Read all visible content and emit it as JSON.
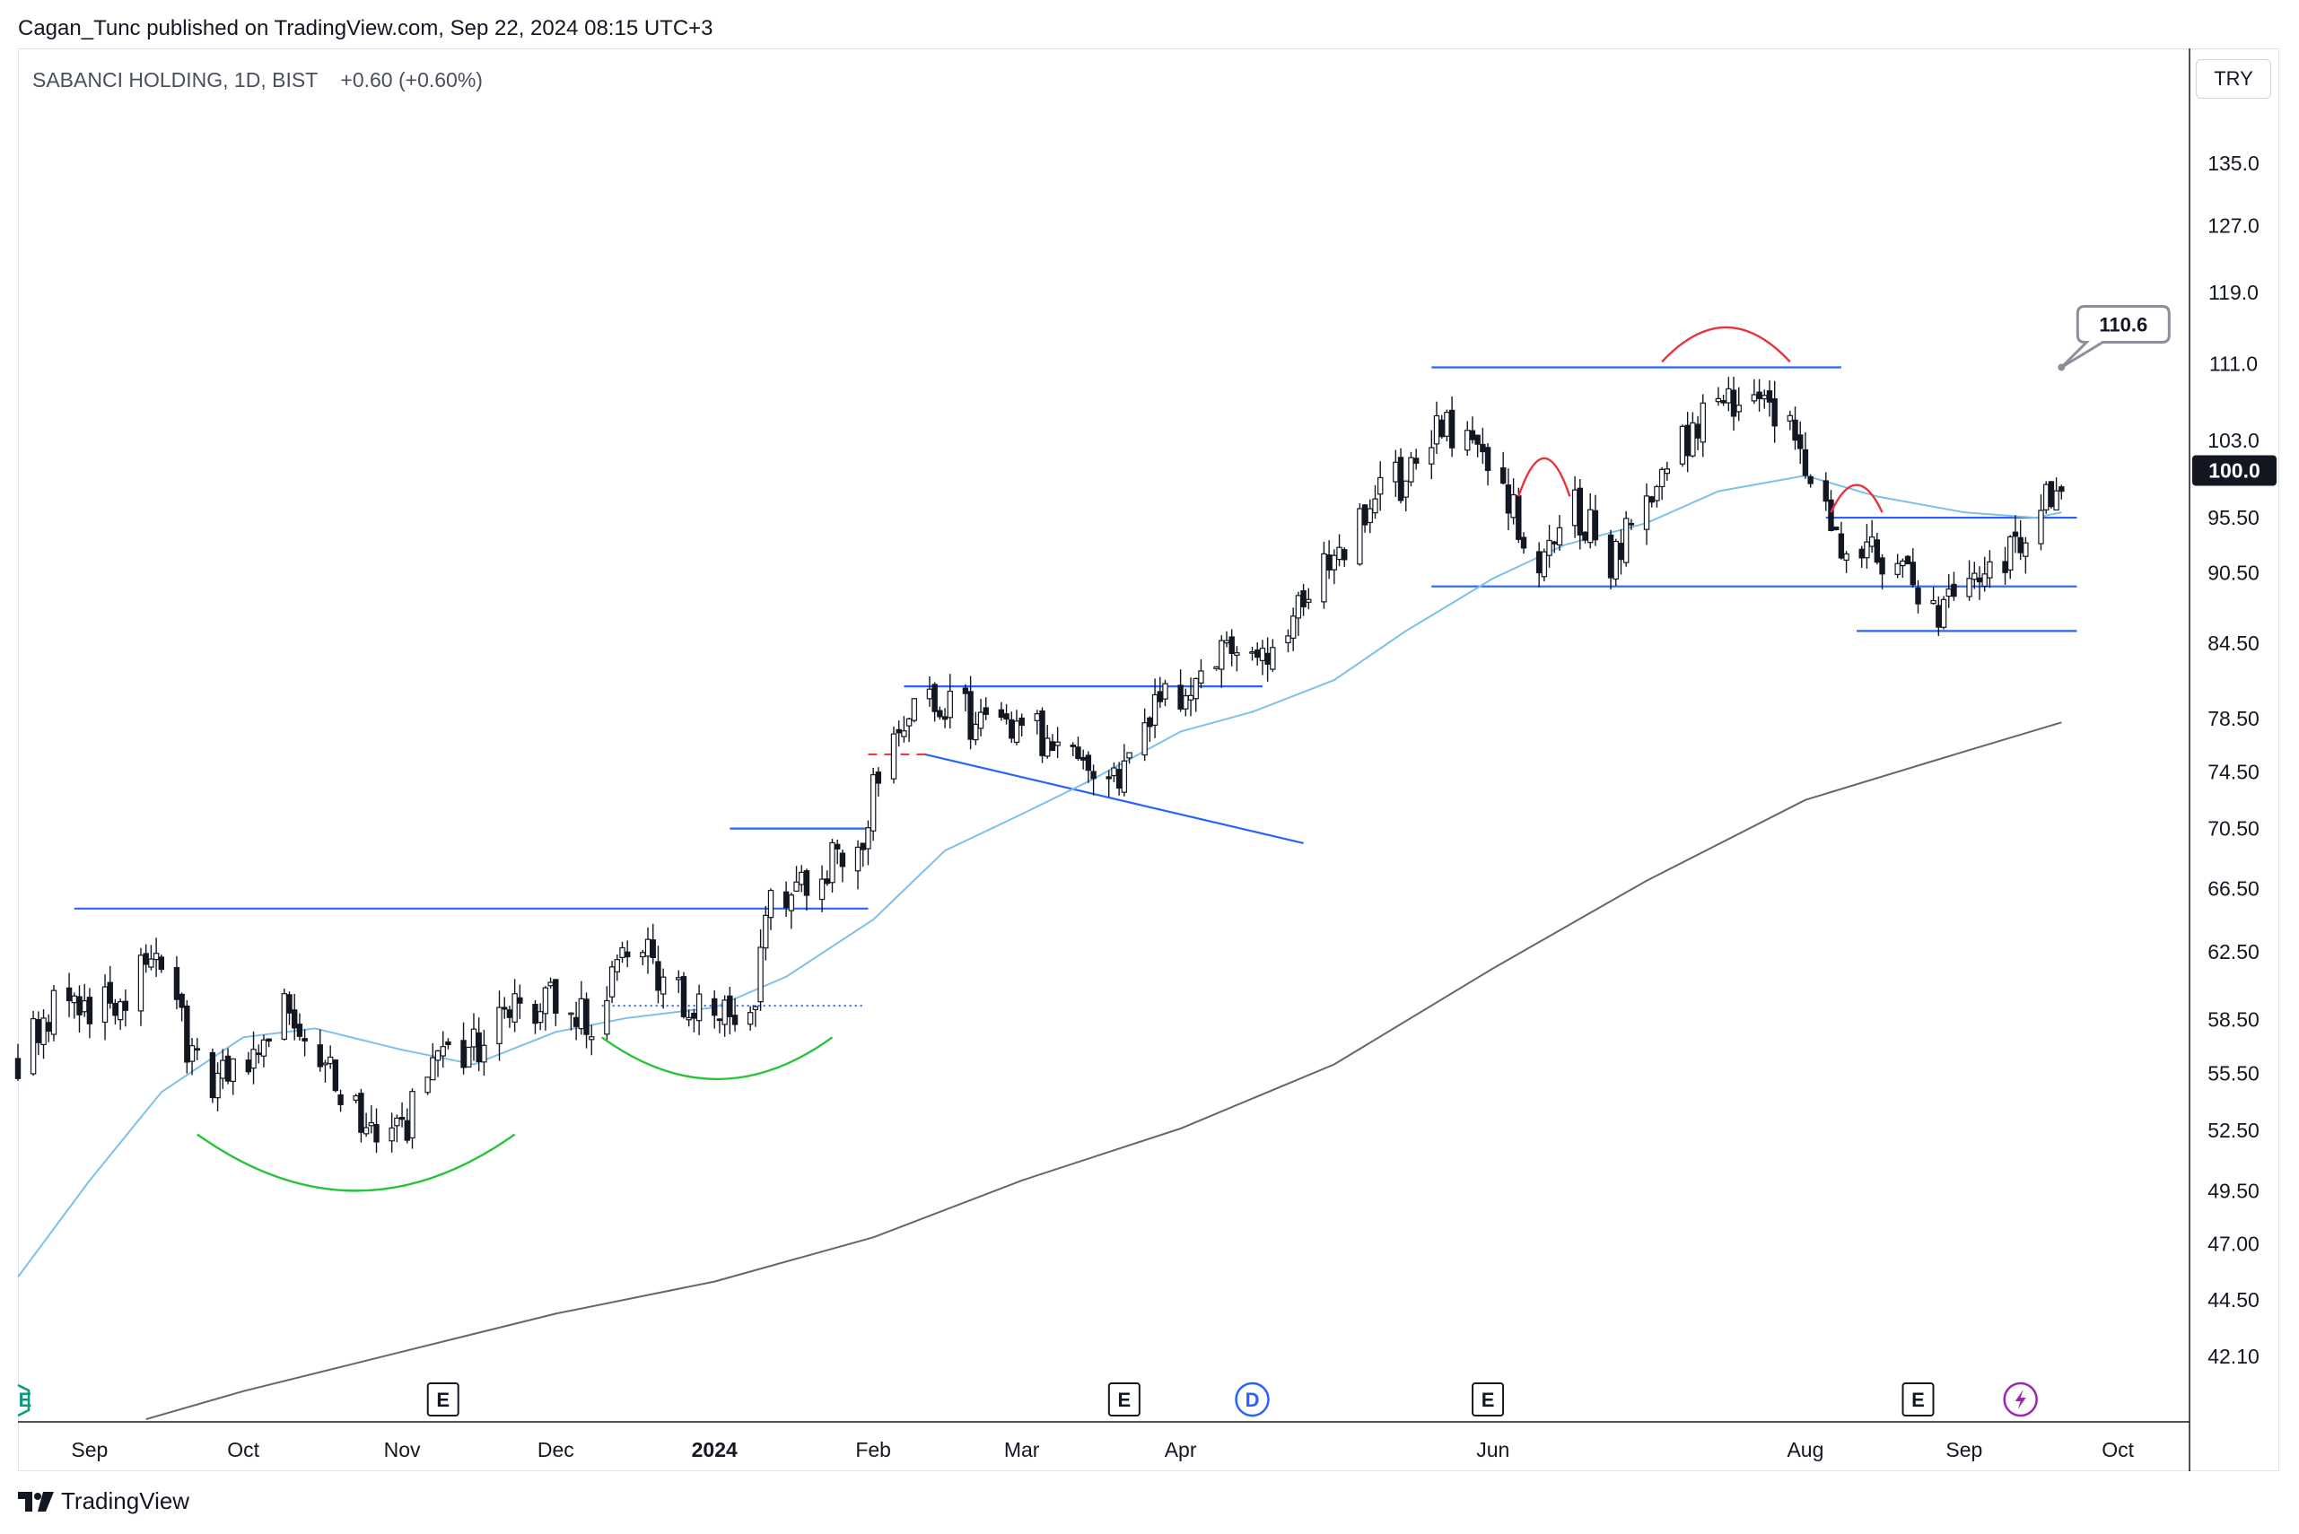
{
  "header": {
    "publish_text": "Cagan_Tunc published on TradingView.com, Sep 22, 2024 08:15 UTC+3"
  },
  "legend": {
    "symbol": "SABANCI HOLDING, 1D, BIST",
    "change": "+0.60 (+0.60%)"
  },
  "price_axis": {
    "currency": "TRY",
    "last_price_label": "100.0",
    "last_price_color": "#131722"
  },
  "footer": {
    "brand": "TradingView"
  },
  "annotations": {
    "callout_value": "110.6"
  },
  "colors": {
    "candle": "#131722",
    "ma_short": "#7cc0ec",
    "ma_long": "#666666",
    "trendline": "#2962ff",
    "arc_red": "#e8333c",
    "arc_green": "#27c43a",
    "earnings_text": "#131722",
    "dividend": "#2962ff",
    "split": "#9c27b0",
    "shoulder_marker": "#e8333c"
  },
  "chart_data": {
    "type": "candlestick",
    "title": "",
    "xlabel": "",
    "ylabel": "",
    "scale": "log",
    "x_range": [
      "2023-08-18",
      "2024-10-15"
    ],
    "ylim": [
      39.5,
      151.0
    ],
    "y_ticks": [
      42.1,
      44.5,
      47.0,
      49.5,
      52.5,
      55.5,
      58.5,
      62.5,
      66.5,
      70.5,
      74.5,
      78.5,
      84.5,
      90.5,
      95.5,
      103.0,
      111.0,
      119.0,
      127.0,
      135.0
    ],
    "y_tick_labels": [
      "42.10",
      "44.50",
      "47.00",
      "49.50",
      "52.50",
      "55.50",
      "58.50",
      "62.50",
      "66.50",
      "70.50",
      "74.50",
      "78.50",
      "84.50",
      "90.50",
      "95.50",
      "103.0",
      "111.0",
      "119.0",
      "127.0",
      "135.0"
    ],
    "x_ticks": [
      {
        "date": "2023-09-01",
        "label": "Sep",
        "bold": false
      },
      {
        "date": "2023-10-01",
        "label": "Oct",
        "bold": false
      },
      {
        "date": "2023-11-01",
        "label": "Nov",
        "bold": false
      },
      {
        "date": "2023-12-01",
        "label": "Dec",
        "bold": false
      },
      {
        "date": "2024-01-01",
        "label": "2024",
        "bold": true
      },
      {
        "date": "2024-02-01",
        "label": "Feb",
        "bold": false
      },
      {
        "date": "2024-03-01",
        "label": "Mar",
        "bold": false
      },
      {
        "date": "2024-04-01",
        "label": "Apr",
        "bold": false
      },
      {
        "date": "2024-06-01",
        "label": "Jun",
        "bold": false
      },
      {
        "date": "2024-08-01",
        "label": "Aug",
        "bold": false
      },
      {
        "date": "2024-09-01",
        "label": "Sep",
        "bold": false
      },
      {
        "date": "2024-10-01",
        "label": "Oct",
        "bold": false
      }
    ],
    "close_path": [
      [
        "2023-08-18",
        56.5
      ],
      [
        "2023-08-25",
        59.5
      ],
      [
        "2023-09-01",
        59.0
      ],
      [
        "2023-09-08",
        60.0
      ],
      [
        "2023-09-14",
        62.5
      ],
      [
        "2023-09-20",
        57.0
      ],
      [
        "2023-09-25",
        54.5
      ],
      [
        "2023-10-03",
        56.5
      ],
      [
        "2023-10-10",
        59.5
      ],
      [
        "2023-10-17",
        56.0
      ],
      [
        "2023-10-24",
        53.0
      ],
      [
        "2023-11-01",
        52.0
      ],
      [
        "2023-11-06",
        55.5
      ],
      [
        "2023-11-14",
        56.5
      ],
      [
        "2023-11-21",
        58.5
      ],
      [
        "2023-12-01",
        59.5
      ],
      [
        "2023-12-08",
        58.0
      ],
      [
        "2023-12-15",
        63.5
      ],
      [
        "2023-12-21",
        61.5
      ],
      [
        "2023-12-27",
        59.0
      ],
      [
        "2024-01-03",
        58.5
      ],
      [
        "2024-01-08",
        58.0
      ],
      [
        "2024-01-12",
        66.5
      ],
      [
        "2024-01-19",
        67.0
      ],
      [
        "2024-01-26",
        68.5
      ],
      [
        "2024-01-30",
        70.5
      ],
      [
        "2024-02-02",
        75.0
      ],
      [
        "2024-02-08",
        80.0
      ],
      [
        "2024-02-15",
        79.0
      ],
      [
        "2024-02-22",
        78.5
      ],
      [
        "2024-02-28",
        77.0
      ],
      [
        "2024-03-07",
        77.5
      ],
      [
        "2024-03-14",
        74.5
      ],
      [
        "2024-03-20",
        73.5
      ],
      [
        "2024-03-27",
        79.0
      ],
      [
        "2024-04-04",
        81.0
      ],
      [
        "2024-04-10",
        85.0
      ],
      [
        "2024-04-17",
        83.0
      ],
      [
        "2024-04-24",
        87.0
      ],
      [
        "2024-05-02",
        93.0
      ],
      [
        "2024-05-09",
        97.0
      ],
      [
        "2024-05-16",
        100.0
      ],
      [
        "2024-05-21",
        104.5
      ],
      [
        "2024-05-27",
        102.5
      ],
      [
        "2024-06-03",
        99.0
      ],
      [
        "2024-06-10",
        91.0
      ],
      [
        "2024-06-17",
        96.0
      ],
      [
        "2024-06-24",
        92.0
      ],
      [
        "2024-07-01",
        97.0
      ],
      [
        "2024-07-08",
        103.0
      ],
      [
        "2024-07-15",
        107.0
      ],
      [
        "2024-07-22",
        109.0
      ],
      [
        "2024-07-29",
        104.0
      ],
      [
        "2024-08-05",
        95.0
      ],
      [
        "2024-08-12",
        92.5
      ],
      [
        "2024-08-19",
        92.0
      ],
      [
        "2024-08-26",
        86.5
      ],
      [
        "2024-09-02",
        92.0
      ],
      [
        "2024-09-09",
        91.0
      ],
      [
        "2024-09-16",
        96.0
      ],
      [
        "2024-09-20",
        100.0
      ]
    ],
    "series": [
      {
        "values": [
          [
            "2023-08-18",
            45.5
          ],
          [
            "2023-09-01",
            50.0
          ],
          [
            "2023-09-15",
            54.5
          ],
          [
            "2023-10-01",
            57.5
          ],
          [
            "2023-10-15",
            58.0
          ],
          [
            "2023-11-01",
            56.8
          ],
          [
            "2023-11-15",
            56.0
          ],
          [
            "2023-12-01",
            57.8
          ],
          [
            "2023-12-15",
            58.6
          ],
          [
            "2024-01-01",
            59.2
          ],
          [
            "2024-01-15",
            61.0
          ],
          [
            "2024-02-01",
            64.5
          ],
          [
            "2024-02-15",
            69.0
          ],
          [
            "2024-03-01",
            71.5
          ],
          [
            "2024-03-15",
            74.0
          ],
          [
            "2024-04-01",
            77.5
          ],
          [
            "2024-04-15",
            79.0
          ],
          [
            "2024-05-01",
            81.5
          ],
          [
            "2024-05-15",
            85.5
          ],
          [
            "2024-06-01",
            90.0
          ],
          [
            "2024-06-15",
            93.0
          ],
          [
            "2024-07-01",
            95.0
          ],
          [
            "2024-07-15",
            98.0
          ],
          [
            "2024-08-01",
            99.5
          ],
          [
            "2024-08-15",
            97.5
          ],
          [
            "2024-09-01",
            96.0
          ],
          [
            "2024-09-15",
            95.5
          ],
          [
            "2024-09-20",
            96.0
          ]
        ]
      },
      {
        "values": [
          [
            "2023-09-12",
            39.6
          ],
          [
            "2023-10-01",
            40.7
          ],
          [
            "2023-11-01",
            42.3
          ],
          [
            "2023-12-01",
            43.9
          ],
          [
            "2024-01-01",
            45.3
          ],
          [
            "2024-02-01",
            47.3
          ],
          [
            "2024-03-01",
            50.0
          ],
          [
            "2024-04-01",
            52.6
          ],
          [
            "2024-05-01",
            56.0
          ],
          [
            "2024-06-01",
            61.5
          ],
          [
            "2024-07-01",
            67.0
          ],
          [
            "2024-08-01",
            72.5
          ],
          [
            "2024-09-01",
            76.0
          ],
          [
            "2024-09-20",
            78.2
          ]
        ]
      }
    ],
    "horizontal_lines": [
      {
        "y": 65.2,
        "x1": "2023-08-29",
        "x2": "2024-01-31"
      },
      {
        "y": 70.5,
        "x1": "2024-01-04",
        "x2": "2024-01-31"
      },
      {
        "y": 81.0,
        "x1": "2024-02-07",
        "x2": "2024-04-17"
      },
      {
        "y": 110.6,
        "x1": "2024-05-20",
        "x2": "2024-08-08"
      },
      {
        "y": 89.3,
        "x1": "2024-05-20",
        "x2": "2024-09-23"
      },
      {
        "y": 95.5,
        "x1": "2024-08-05",
        "x2": "2024-09-23"
      },
      {
        "y": 85.5,
        "x1": "2024-08-11",
        "x2": "2024-09-23"
      }
    ],
    "diagonal_lines": [
      {
        "x1": "2024-02-11",
        "y1": 75.8,
        "x2": "2024-04-25",
        "y2": 69.5
      }
    ],
    "dashed_lines": [
      {
        "y": 75.8,
        "x1": "2024-01-31",
        "x2": "2024-02-12",
        "color": "#e8333c",
        "style": "dash"
      },
      {
        "y": 59.3,
        "x1": "2023-12-10",
        "x2": "2024-01-30",
        "color": "#2962ff",
        "style": "dot"
      }
    ],
    "arcs": [
      {
        "x1": "2023-09-22",
        "x2": "2023-11-23",
        "y_ends": 52.3,
        "y_peak": 49.5,
        "color": "green"
      },
      {
        "x1": "2023-12-10",
        "x2": "2024-01-24",
        "y_ends": 57.5,
        "y_peak": 55.2,
        "color": "green"
      },
      {
        "x1": "2024-06-06",
        "x2": "2024-06-16",
        "y_ends": 97.5,
        "y_peak": 101.2,
        "color": "red"
      },
      {
        "x1": "2024-07-04",
        "x2": "2024-07-29",
        "y_ends": 111.2,
        "y_peak": 115.0,
        "color": "red"
      },
      {
        "x1": "2024-08-06",
        "x2": "2024-08-16",
        "y_ends": 96.0,
        "y_peak": 98.6,
        "color": "red"
      }
    ],
    "events": [
      {
        "date": "2023-11-09",
        "type": "E"
      },
      {
        "date": "2024-03-21",
        "type": "E"
      },
      {
        "date": "2024-04-15",
        "type": "D"
      },
      {
        "date": "2024-05-31",
        "type": "E"
      },
      {
        "date": "2024-08-23",
        "type": "E"
      },
      {
        "date": "2024-09-12",
        "type": "split"
      }
    ]
  }
}
